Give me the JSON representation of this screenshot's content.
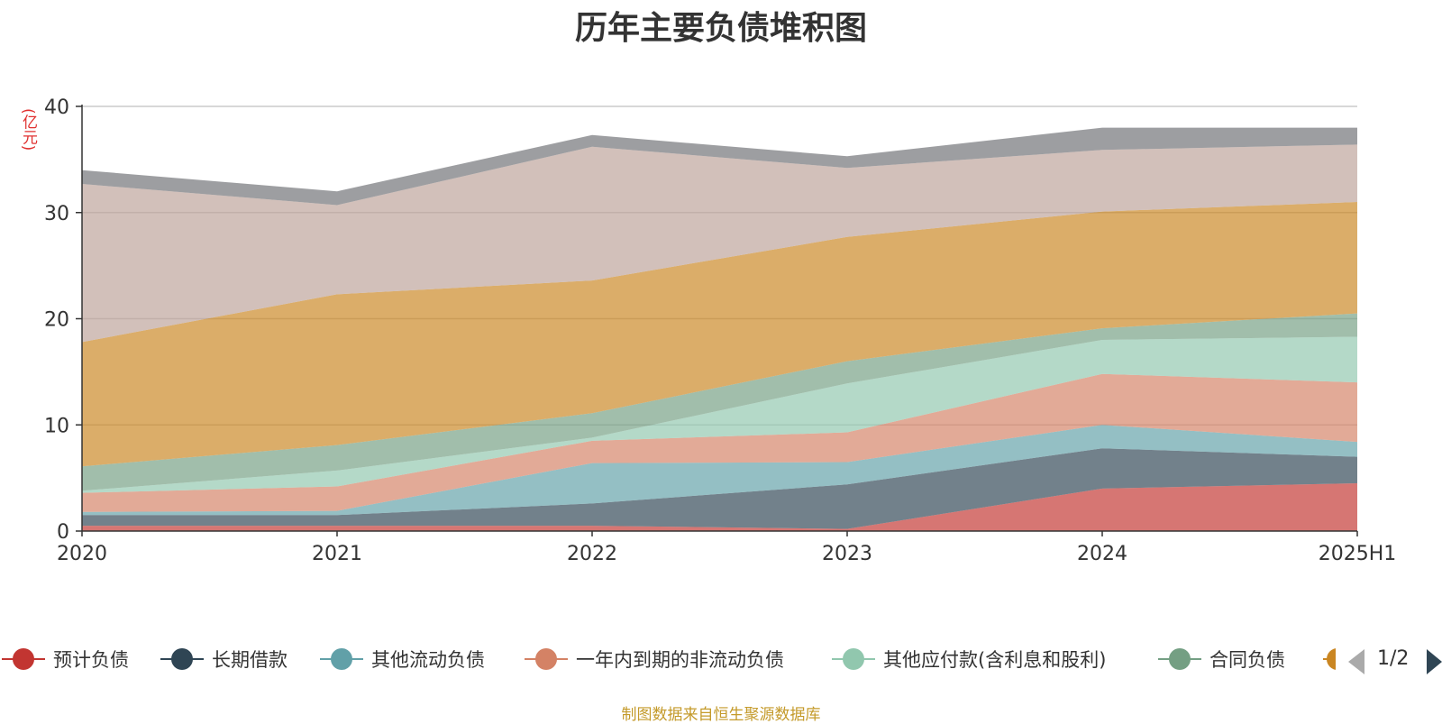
{
  "chart_data": {
    "type": "area",
    "stacked": true,
    "title": "历年主要负债堆积图",
    "unit_label": "(亿元)",
    "source_note": "制图数据来自恒生聚源数据库",
    "categories": [
      "2020",
      "2021",
      "2022",
      "2023",
      "2024",
      "2025H1"
    ],
    "ylim": [
      0,
      40
    ],
    "yticks": [
      0,
      10,
      20,
      30,
      40
    ],
    "grid": true,
    "legend_position": "bottom",
    "series": [
      {
        "name": "预计负债",
        "color": "#c23531",
        "values": [
          0.5,
          0.5,
          0.5,
          0.2,
          4.0,
          4.5
        ]
      },
      {
        "name": "长期借款",
        "color": "#2f4554",
        "values": [
          1.0,
          1.0,
          2.1,
          4.2,
          3.8,
          2.5
        ]
      },
      {
        "name": "其他流动负债",
        "color": "#61a0a8",
        "values": [
          0.3,
          0.4,
          3.8,
          2.1,
          2.2,
          1.4
        ]
      },
      {
        "name": "一年内到期的非流动负债",
        "color": "#d48265",
        "values": [
          1.8,
          2.3,
          2.1,
          2.8,
          4.8,
          5.6
        ]
      },
      {
        "name": "其他应付款(含利息和股利)",
        "color": "#91c7ae",
        "values": [
          0.2,
          1.5,
          0.3,
          4.6,
          3.2,
          4.3
        ]
      },
      {
        "name": "合同负债",
        "color": "#749f83",
        "values": [
          2.3,
          2.4,
          2.3,
          2.1,
          1.1,
          2.2
        ]
      },
      {
        "name": "",
        "color": "#ca8622",
        "values": [
          11.7,
          14.2,
          12.5,
          11.7,
          11.0,
          10.5
        ]
      },
      {
        "name": "",
        "color": "#bda29a",
        "values": [
          14.9,
          8.4,
          12.6,
          6.5,
          5.8,
          5.4
        ]
      },
      {
        "name": "",
        "color": "#6e7074",
        "values": [
          1.3,
          1.3,
          1.1,
          1.1,
          2.1,
          1.6
        ]
      }
    ]
  },
  "legend": {
    "page_text": "1/2"
  }
}
